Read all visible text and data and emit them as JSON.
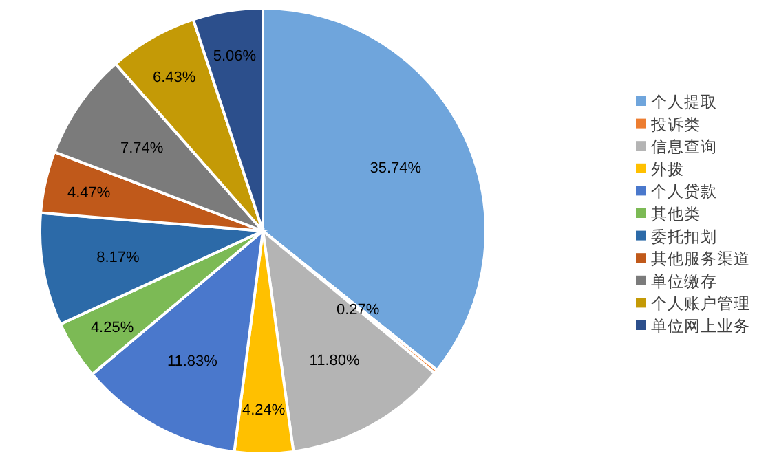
{
  "chart_data": {
    "type": "pie",
    "categories": [
      "个人提取",
      "投诉类",
      "信息查询",
      "外拨",
      "个人贷款",
      "其他类",
      "委托扣划",
      "其他服务渠道",
      "单位缴存",
      "个人账户管理",
      "单位网上业务"
    ],
    "values": [
      35.74,
      0.27,
      11.8,
      4.24,
      11.83,
      4.25,
      8.17,
      4.47,
      7.74,
      6.43,
      5.06
    ],
    "colors": [
      "#6fa5dc",
      "#ed7d31",
      "#b4b4b4",
      "#ffc000",
      "#4a78cc",
      "#7cba55",
      "#2c6aa8",
      "#c0591a",
      "#7b7b7b",
      "#c49a06",
      "#2c4f8c"
    ],
    "value_labels": [
      "35.74%",
      "0.27%",
      "11.80%",
      "4.24%",
      "11.83%",
      "4.25%",
      "8.17%",
      "4.47%",
      "7.74%",
      "6.43%",
      "5.06%"
    ],
    "legend": "right"
  }
}
